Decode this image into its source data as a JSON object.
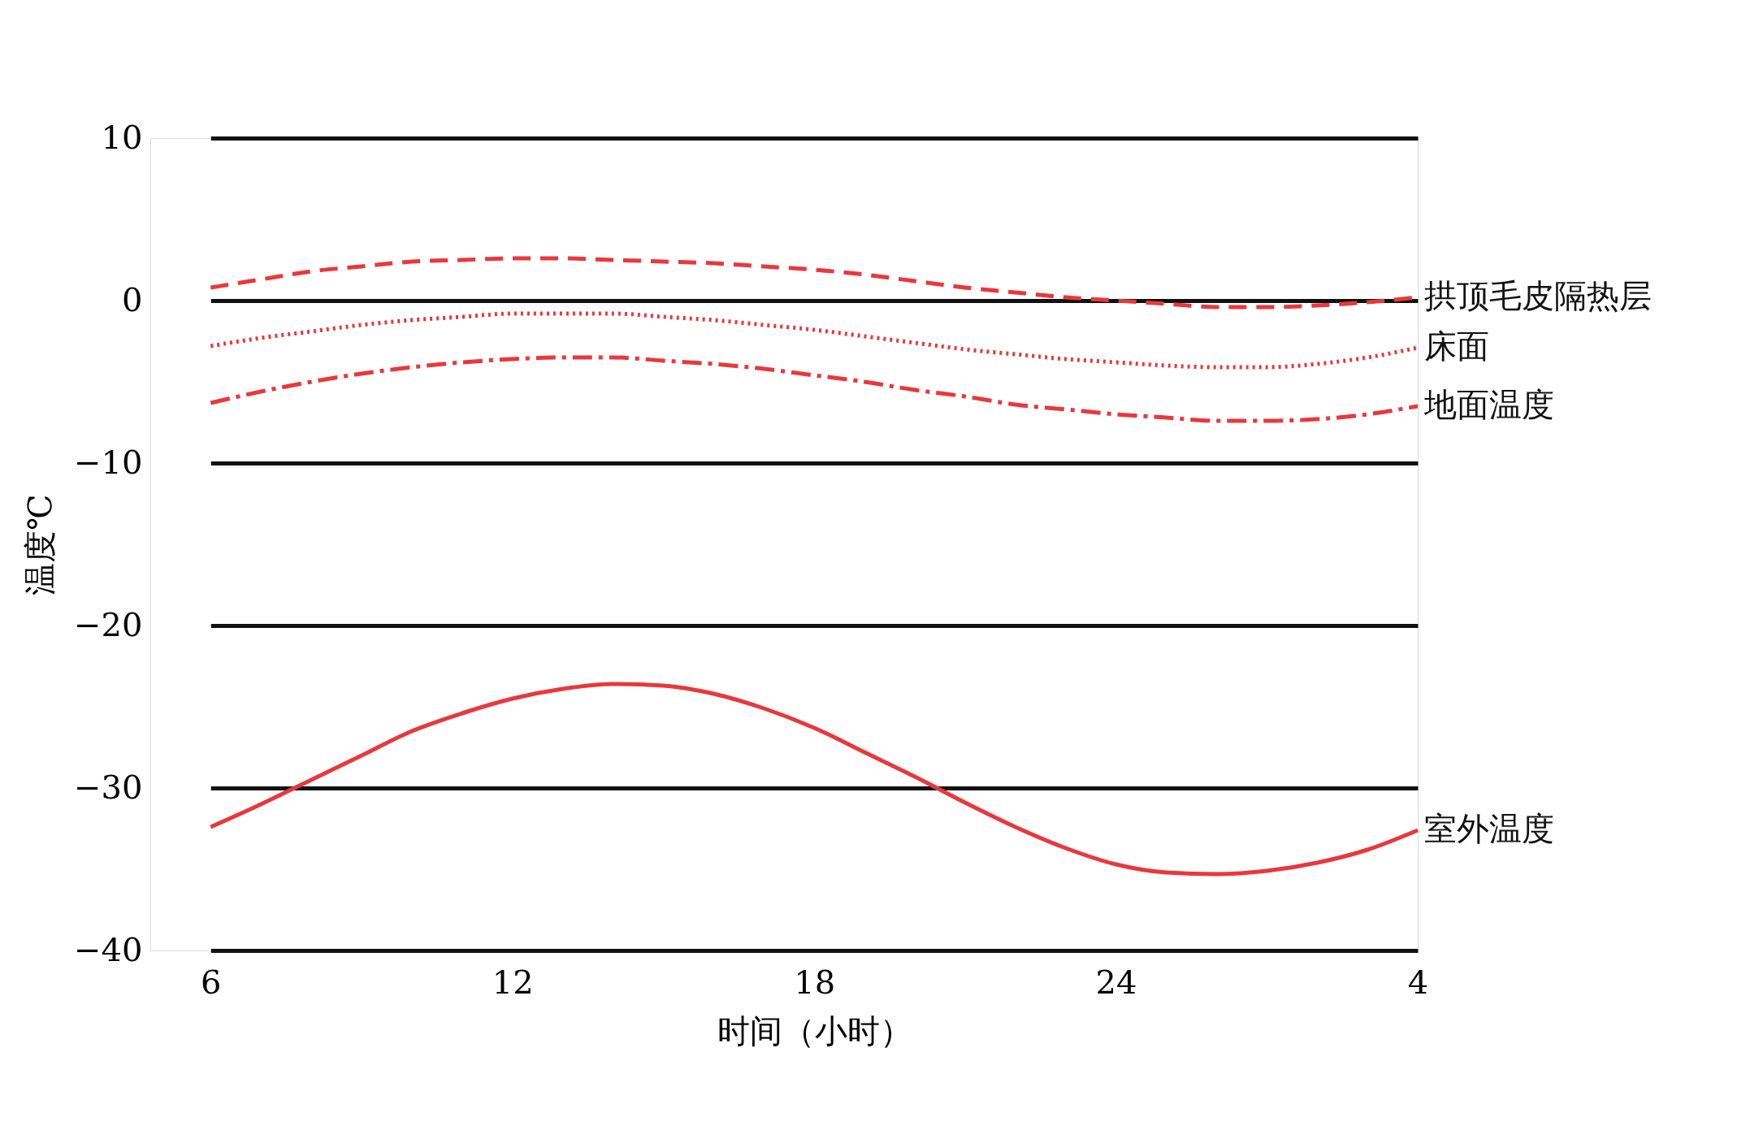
{
  "chart_data": {
    "type": "line",
    "xlabel": "时间（小时）",
    "ylabel": "温度℃",
    "categories": [
      "6",
      null,
      null,
      null,
      null,
      null,
      "12",
      null,
      null,
      null,
      null,
      null,
      "18",
      null,
      null,
      null,
      null,
      null,
      "24",
      null,
      null,
      null,
      null,
      null,
      "4"
    ],
    "ylim": [
      -40,
      10
    ],
    "yticks": [
      -40,
      -30,
      -20,
      -10,
      0,
      10
    ],
    "grid": "y",
    "legend": false,
    "marker": "none",
    "series": [
      {
        "name": "拱顶毛皮隔热层",
        "color": "#e8383d",
        "line_style": "dashed",
        "values": [
          0.8,
          1.3,
          1.8,
          2.1,
          2.4,
          2.5,
          2.6,
          2.6,
          2.5,
          2.4,
          2.3,
          2.1,
          1.9,
          1.6,
          1.2,
          0.8,
          0.5,
          0.2,
          0.0,
          -0.2,
          -0.4,
          -0.4,
          -0.3,
          -0.1,
          0.2
        ]
      },
      {
        "name": "床面",
        "color": "#e8383d",
        "line_style": "dotted",
        "values": [
          -2.8,
          -2.3,
          -1.9,
          -1.5,
          -1.2,
          -1.0,
          -0.8,
          -0.8,
          -0.8,
          -1.0,
          -1.2,
          -1.5,
          -1.8,
          -2.2,
          -2.6,
          -3.0,
          -3.3,
          -3.6,
          -3.8,
          -4.0,
          -4.1,
          -4.1,
          -3.9,
          -3.5,
          -2.9
        ]
      },
      {
        "name": "地面温度",
        "color": "#e8383d",
        "line_style": "dashdot",
        "values": [
          -6.3,
          -5.6,
          -5.0,
          -4.5,
          -4.1,
          -3.8,
          -3.6,
          -3.5,
          -3.5,
          -3.7,
          -3.9,
          -4.2,
          -4.6,
          -5.0,
          -5.5,
          -5.9,
          -6.4,
          -6.7,
          -7.0,
          -7.2,
          -7.4,
          -7.4,
          -7.3,
          -7.0,
          -6.5
        ]
      },
      {
        "name": "室外温度",
        "color": "#e8383d",
        "line_style": "solid",
        "values": [
          -32.4,
          -31.0,
          -29.5,
          -28.0,
          -26.5,
          -25.4,
          -24.5,
          -23.9,
          -23.6,
          -23.7,
          -24.2,
          -25.1,
          -26.3,
          -27.8,
          -29.3,
          -30.9,
          -32.4,
          -33.7,
          -34.7,
          -35.2,
          -35.3,
          -35.1,
          -34.6,
          -33.8,
          -32.6
        ]
      }
    ]
  }
}
